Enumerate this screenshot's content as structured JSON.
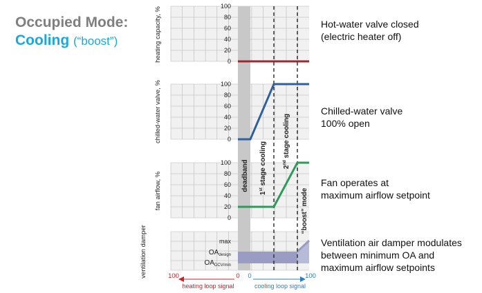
{
  "title": {
    "mode": "Occupied Mode:",
    "cooling": "Cooling",
    "boost": "(“boost”)"
  },
  "panels": {
    "heating": {
      "ylabel": "heating capacity, %",
      "ticks": [
        "100",
        "80",
        "60",
        "40",
        "20",
        "0"
      ]
    },
    "chilled": {
      "ylabel": "chilled-water valve, %",
      "ticks": [
        "100",
        "80",
        "60",
        "40",
        "20",
        "0"
      ]
    },
    "fan": {
      "ylabel": "fan airflow, %",
      "ticks": [
        "100",
        "80",
        "60",
        "40",
        "20",
        "0"
      ]
    },
    "vent": {
      "ylabel": "ventilation damper",
      "ticks": [
        "max"
      ],
      "tick_oa_design": {
        "main": "OA",
        "sub": "design"
      },
      "tick_oa_dcv": {
        "main": "OA",
        "sub": "DCV/min"
      }
    }
  },
  "zones": {
    "deadband": "deadband",
    "stage1": {
      "pre": "1",
      "sup": "st",
      "post": " stage cooling"
    },
    "stage2": {
      "pre": "2",
      "sup": "nd",
      "post": " stage cooling"
    },
    "boost": "“boost” mode"
  },
  "xaxis": {
    "left_100": "100",
    "left_0": "0",
    "right_0": "0",
    "right_100": "100",
    "heating_label": "heating loop signal",
    "cooling_label": "cooling loop signal"
  },
  "annotations": {
    "hot_water": [
      "Hot-water valve closed",
      "(electric heater off)"
    ],
    "chilled_water": [
      "Chilled-water valve",
      "100% open"
    ],
    "fan": [
      "Fan operates at",
      "maximum airflow setpoint"
    ],
    "ventilation": [
      "Ventilation air damper modulates",
      "between minimum OA and",
      "maximum airflow setpoints"
    ]
  },
  "colors": {
    "heating_line": "#a0282d",
    "chilled_line": "#2f5f9e",
    "fan_line": "#2e9a5a",
    "vent_fill": "#9a9cc4",
    "deadband_fill": "#c8c8c8",
    "heating_axis": "#d0202a",
    "cooling_axis": "#2a7fc0",
    "title_accent": "#1aa7e0"
  },
  "chart_data": [
    {
      "type": "line",
      "ylabel": "heating capacity, %",
      "ylim": [
        0,
        100
      ],
      "x": [
        "deadband start",
        "boost end"
      ],
      "series": [
        {
          "values": [
            0,
            0
          ]
        }
      ]
    },
    {
      "type": "line",
      "ylabel": "chilled-water valve, %",
      "ylim": [
        0,
        100
      ],
      "x": [
        "deadband start",
        "deadband end",
        "1st stage end",
        "boost end"
      ],
      "series": [
        {
          "values": [
            0,
            0,
            100,
            100
          ]
        }
      ]
    },
    {
      "type": "line",
      "ylabel": "fan airflow, %",
      "ylim": [
        0,
        100
      ],
      "x": [
        "deadband start",
        "1st stage end",
        "2nd stage end",
        "boost end"
      ],
      "series": [
        {
          "values": [
            20,
            20,
            100,
            100
          ]
        }
      ]
    }
  ]
}
